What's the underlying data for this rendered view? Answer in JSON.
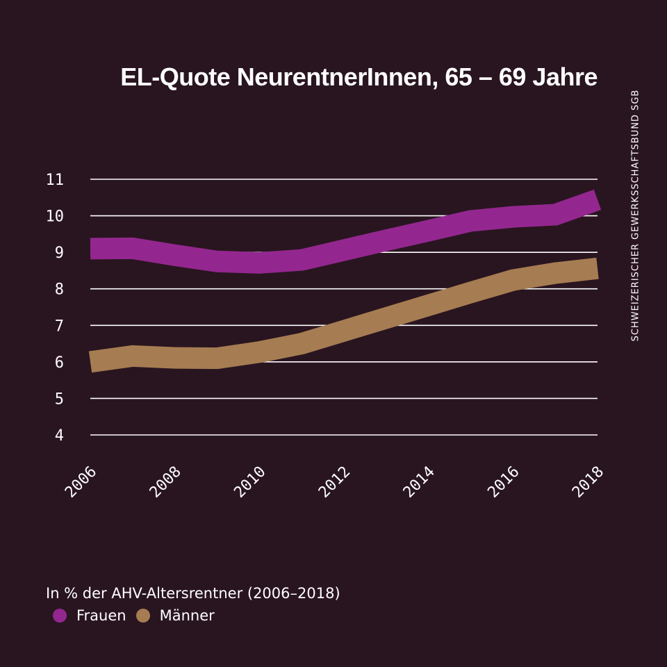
{
  "credit": "SCHWEIZERISCHER GEWERKSSCHAFTSBUND SGB",
  "legend_note": "In % der AHV-Altersrentner (2006–2018)",
  "colors": {
    "background": "#291520",
    "frauen": "#93278f",
    "maenner": "#a67c52",
    "grid": "#ffffff"
  },
  "chart_data": {
    "type": "line",
    "title": "EL-Quote NeurentnerInnen, 65 – 69 Jahre",
    "xlabel": "",
    "ylabel": "",
    "x": [
      2006,
      2007,
      2008,
      2009,
      2010,
      2011,
      2012,
      2013,
      2014,
      2015,
      2016,
      2017,
      2018
    ],
    "x_tick_labels": [
      "2006",
      "2008",
      "2010",
      "2012",
      "2014",
      "2016",
      "2018"
    ],
    "x_ticks": [
      2006,
      2008,
      2010,
      2012,
      2014,
      2016,
      2018
    ],
    "y_ticks": [
      4,
      5,
      6,
      7,
      8,
      9,
      10,
      11
    ],
    "y_tick_labels": [
      "4",
      "5",
      "6",
      "7",
      "8",
      "9",
      "10",
      "11"
    ],
    "ylim": [
      4,
      11
    ],
    "xlim": [
      2006,
      2018
    ],
    "grid": "horizontal",
    "legend_position": "bottom-left",
    "series": [
      {
        "name": "Frauen",
        "color": "#93278f",
        "values": [
          9.1,
          9.11,
          8.92,
          8.75,
          8.71,
          8.79,
          9.06,
          9.33,
          9.59,
          9.86,
          9.97,
          10.03,
          10.44
        ]
      },
      {
        "name": "Männer",
        "color": "#a67c52",
        "values": [
          6.0,
          6.16,
          6.11,
          6.1,
          6.27,
          6.5,
          6.85,
          7.2,
          7.55,
          7.9,
          8.24,
          8.43,
          8.56
        ]
      }
    ]
  }
}
